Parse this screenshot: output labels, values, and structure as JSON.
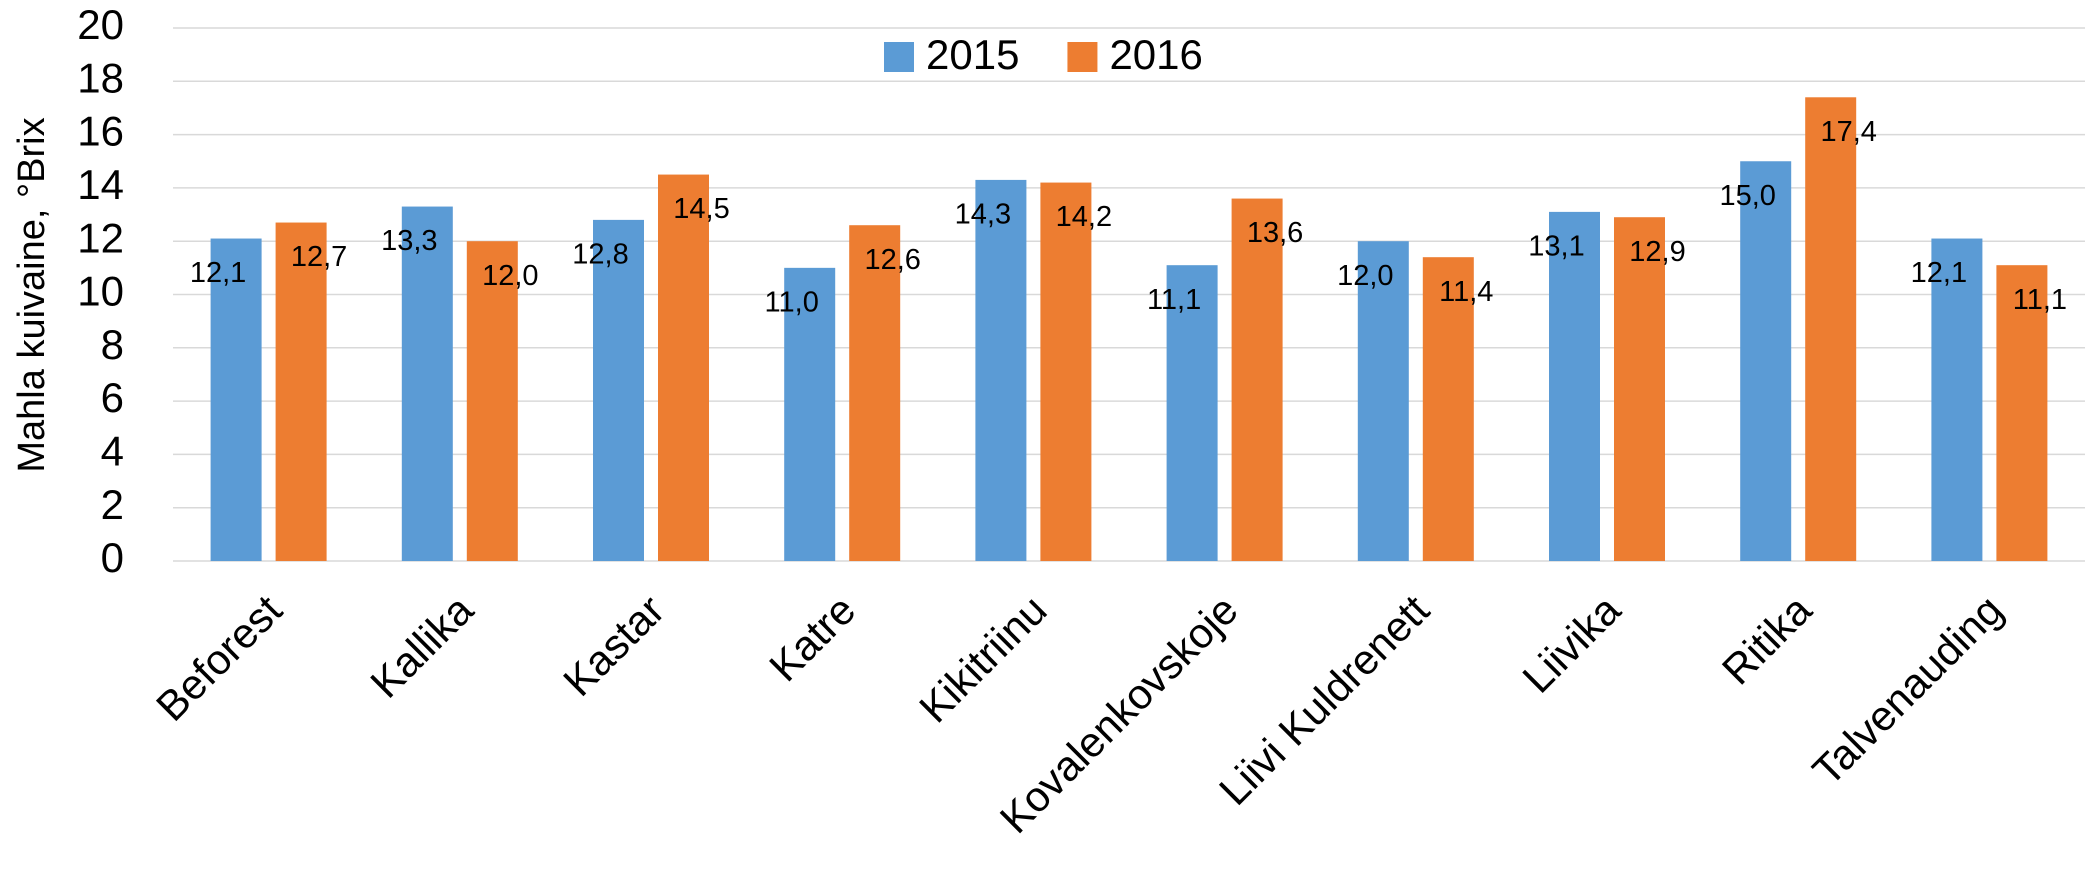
{
  "chart_data": {
    "type": "bar",
    "y_label": "Mahla kuivaine, °Brix",
    "categories": [
      "Beforest",
      "Kallika",
      "Kastar",
      "Katre",
      "Kikitriinu",
      "Kovalenkovskoje",
      "Liivi Kuldrenett",
      "Liivika",
      "Ritika",
      "Talvenauding"
    ],
    "series": [
      {
        "name": "2015",
        "color": "#5b9bd5",
        "values": [
          12.1,
          13.3,
          12.8,
          11.0,
          14.3,
          11.1,
          12.0,
          13.1,
          15.0,
          12.1
        ],
        "value_labels": [
          "12,1",
          "13,3",
          "12,8",
          "11,0",
          "14,3",
          "11,1",
          "12,0",
          "13,1",
          "15,0",
          "12,1"
        ]
      },
      {
        "name": "2016",
        "color": "#ed7d31",
        "values": [
          12.7,
          12.0,
          14.5,
          12.6,
          14.2,
          13.6,
          11.4,
          12.9,
          17.4,
          11.1
        ],
        "value_labels": [
          "12,7",
          "12,0",
          "14,5",
          "12,6",
          "14,2",
          "13,6",
          "11,4",
          "12,9",
          "17,4",
          "11,1"
        ]
      }
    ],
    "ylim": [
      0,
      20
    ],
    "yticks": [
      0,
      2,
      4,
      6,
      8,
      10,
      12,
      14,
      16,
      18,
      20
    ],
    "grid": true,
    "legend": "top"
  }
}
